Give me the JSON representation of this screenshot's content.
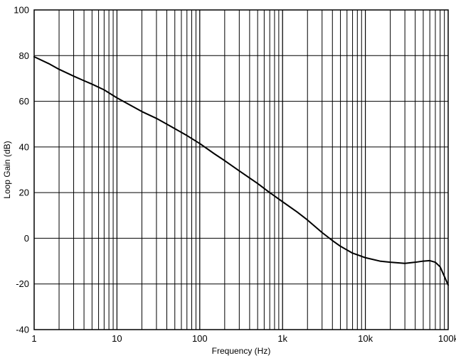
{
  "chart_data": {
    "type": "line",
    "title": "",
    "xlabel": "Frequency (Hz)",
    "ylabel": "Loop Gain (dB)",
    "x_scale": "log",
    "xlim": [
      1,
      100000
    ],
    "ylim": [
      -40,
      100
    ],
    "grid": "log minor vertical grid + major horizontal grid, all solid black on white",
    "legend": "none",
    "line_color": "#000000",
    "grid_color": "#000000",
    "x_ticks": [
      1,
      10,
      100,
      1000,
      10000,
      100000
    ],
    "x_tick_labels": [
      "1",
      "10",
      "100",
      "1k",
      "10k",
      "100k"
    ],
    "y_ticks": [
      100,
      80,
      60,
      40,
      20,
      0,
      -20,
      -40
    ],
    "y_tick_labels": [
      "100",
      "80",
      "60",
      "40",
      "20",
      "0",
      "-20",
      "-40"
    ],
    "series": [
      {
        "name": "Loop Gain",
        "points": [
          [
            1,
            79.5
          ],
          [
            1.5,
            76.5
          ],
          [
            2,
            74
          ],
          [
            3,
            71
          ],
          [
            4,
            69
          ],
          [
            5,
            67.5
          ],
          [
            7,
            65
          ],
          [
            10,
            61.5
          ],
          [
            15,
            58
          ],
          [
            20,
            55.5
          ],
          [
            30,
            52.5
          ],
          [
            40,
            50
          ],
          [
            50,
            48
          ],
          [
            70,
            45
          ],
          [
            100,
            41.5
          ],
          [
            150,
            37
          ],
          [
            200,
            34
          ],
          [
            300,
            29.5
          ],
          [
            500,
            24
          ],
          [
            700,
            20
          ],
          [
            1000,
            16
          ],
          [
            1500,
            11.5
          ],
          [
            2000,
            8
          ],
          [
            3000,
            2.5
          ],
          [
            4000,
            -1
          ],
          [
            5000,
            -3.5
          ],
          [
            7000,
            -6.5
          ],
          [
            10000,
            -8.5
          ],
          [
            15000,
            -10
          ],
          [
            20000,
            -10.5
          ],
          [
            30000,
            -11
          ],
          [
            40000,
            -10.5
          ],
          [
            50000,
            -10
          ],
          [
            60000,
            -9.8
          ],
          [
            70000,
            -10.5
          ],
          [
            80000,
            -12.5
          ],
          [
            100000,
            -20.5
          ]
        ]
      }
    ]
  }
}
